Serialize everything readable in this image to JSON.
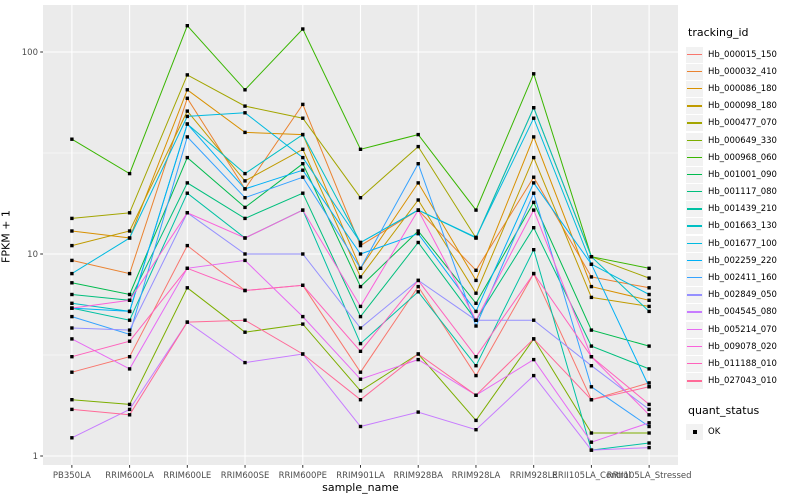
{
  "figure": {
    "panel_background": "#EBEBEB",
    "gridline_color": "#FFFFFF",
    "axis_text_color": "#4D4D4D",
    "legend_key_background": "#F2F2F2"
  },
  "chart_data": {
    "type": "line",
    "title": "",
    "xlabel": "sample_name",
    "ylabel": "FPKM + 1",
    "y_scale": "log10",
    "y_ticks": [
      "1",
      "10",
      "100"
    ],
    "ylim": [
      0.9,
      170
    ],
    "grid": true,
    "legend_position": "right",
    "legend_title": "tracking_id",
    "quant_legend": {
      "title": "quant_status",
      "items": [
        {
          "label": "OK",
          "marker": "black-square"
        }
      ]
    },
    "categories": [
      "PB350LA",
      "RRIM600LA",
      "RRIM600LE",
      "RRIM600SE",
      "RRIM600PE",
      "RRIM901LA",
      "RRIM928BA",
      "RRIM928LA",
      "RRIM928LE",
      "RRII105LA_Control",
      "RRII105LA_Stressed"
    ],
    "series": [
      {
        "name": "Hb_000015_150",
        "color": "#F8766D",
        "values": [
          2.6,
          3.1,
          11,
          6.6,
          7.0,
          2.6,
          6.9,
          2.5,
          8.0,
          1.9,
          2.3
        ]
      },
      {
        "name": "Hb_000032_410",
        "color": "#EA8331",
        "values": [
          9.3,
          8.0,
          59,
          21,
          55,
          11,
          16.5,
          8.3,
          24,
          7.7,
          6.8
        ]
      },
      {
        "name": "Hb_000086_180",
        "color": "#D89000",
        "values": [
          13,
          12,
          65,
          40,
          39,
          8.5,
          22.5,
          7.4,
          38,
          6.9,
          5.9
        ]
      },
      {
        "name": "Hb_000098_180",
        "color": "#C09B00",
        "values": [
          11,
          13,
          51,
          23,
          33,
          7.7,
          18.5,
          6.4,
          30,
          6.1,
          5.5
        ]
      },
      {
        "name": "Hb_000477_070",
        "color": "#A3A500",
        "values": [
          15,
          16,
          77,
          54,
          47,
          19,
          34,
          12,
          53,
          9.7,
          7.6
        ]
      },
      {
        "name": "Hb_000649_330",
        "color": "#7CAE00",
        "values": [
          1.9,
          1.8,
          6.8,
          4.1,
          4.5,
          2.1,
          3.2,
          1.5,
          3.8,
          1.3,
          1.3
        ]
      },
      {
        "name": "Hb_000968_060",
        "color": "#39B600",
        "values": [
          37,
          25,
          135,
          65,
          130,
          33,
          39,
          16.5,
          78,
          9.7,
          8.5
        ]
      },
      {
        "name": "Hb_001001_090",
        "color": "#00BB4E",
        "values": [
          7.2,
          6.3,
          30,
          17,
          28,
          6.9,
          13,
          5.7,
          18,
          4.2,
          3.5
        ]
      },
      {
        "name": "Hb_001117_080",
        "color": "#00BF7D",
        "values": [
          6.3,
          5.9,
          22.5,
          15,
          20,
          4.9,
          11.4,
          4.7,
          13.5,
          3.5,
          2.7
        ]
      },
      {
        "name": "Hb_001439_210",
        "color": "#00C1A3",
        "values": [
          5.4,
          4.7,
          20,
          12,
          16.5,
          3.6,
          6.5,
          2.8,
          10.5,
          1.07,
          1.16
        ]
      },
      {
        "name": "Hb_001663_130",
        "color": "#00BFC4",
        "values": [
          5.7,
          5.2,
          44,
          25,
          39,
          11.4,
          16.5,
          12,
          53,
          9.7,
          5.2
        ]
      },
      {
        "name": "Hb_001677_100",
        "color": "#00BAE0",
        "values": [
          8.0,
          12,
          48,
          50,
          30,
          11.4,
          16.5,
          12.1,
          47,
          8.9,
          6.3
        ]
      },
      {
        "name": "Hb_002259_220",
        "color": "#00B0F6",
        "values": [
          5.4,
          5.2,
          44,
          21,
          26,
          10,
          12.6,
          5.2,
          22.5,
          8.9,
          2.2
        ]
      },
      {
        "name": "Hb_002411_160",
        "color": "#35A2FF",
        "values": [
          4.9,
          4.0,
          38,
          19,
          24,
          8.5,
          28,
          4.4,
          20,
          2.2,
          1.4
        ]
      },
      {
        "name": "Hb_002849_050",
        "color": "#9590FF",
        "values": [
          4.3,
          4.2,
          16,
          10,
          10,
          4.3,
          7.4,
          4.7,
          4.7,
          2.8,
          1.7
        ]
      },
      {
        "name": "Hb_004545_080",
        "color": "#C77CFF",
        "values": [
          1.23,
          1.7,
          4.6,
          2.9,
          3.2,
          1.4,
          1.65,
          1.35,
          2.5,
          1.07,
          1.1
        ]
      },
      {
        "name": "Hb_005214_070",
        "color": "#E76BF3",
        "values": [
          3.8,
          2.7,
          8.5,
          9.3,
          4.9,
          2.4,
          3.0,
          2.0,
          3.0,
          1.17,
          1.46
        ]
      },
      {
        "name": "Hb_009078_020",
        "color": "#FA62DB",
        "values": [
          5.4,
          5.9,
          16,
          12,
          16.5,
          5.5,
          16.5,
          4.7,
          16.5,
          3.1,
          1.6
        ]
      },
      {
        "name": "Hb_011188_010",
        "color": "#FF62BC",
        "values": [
          3.1,
          3.7,
          8.5,
          6.6,
          7.0,
          3.3,
          7.4,
          3.1,
          8.0,
          3.1,
          1.8
        ]
      },
      {
        "name": "Hb_027043_010",
        "color": "#FF6A98",
        "values": [
          1.7,
          1.6,
          4.6,
          4.7,
          3.2,
          1.9,
          3.2,
          2.0,
          3.8,
          1.9,
          2.2
        ]
      }
    ]
  }
}
